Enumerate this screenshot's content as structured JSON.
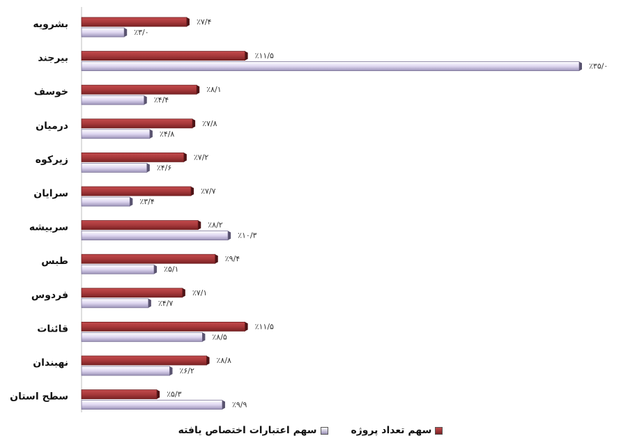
{
  "chart_data": {
    "type": "bar",
    "orientation": "horizontal",
    "categories": [
      "بشرویه",
      "بیرجند",
      "خوسف",
      "درمیان",
      "زیرکوه",
      "سرایان",
      "سربیشه",
      "طبس",
      "فردوس",
      "قائنات",
      "نهبندان",
      "سطح استان"
    ],
    "series": [
      {
        "name": "سهم تعداد پروژه",
        "color": "#a8393b",
        "values": [
          7.4,
          11.5,
          8.1,
          7.8,
          7.2,
          7.7,
          8.2,
          9.4,
          7.1,
          11.5,
          8.8,
          5.3
        ],
        "labels": [
          "٪۷/۴",
          "٪۱۱/۵",
          "٪۸/۱",
          "٪۷/۸",
          "٪۷/۲",
          "٪۷/۷",
          "٪۸/۲",
          "٪۹/۴",
          "٪۷/۱",
          "٪۱۱/۵",
          "٪۸/۸",
          "٪۵/۳"
        ]
      },
      {
        "name": "سهم اعتبارات اختصاص یافته",
        "color": "#c8bfe0",
        "values": [
          3.0,
          35.0,
          4.4,
          4.8,
          4.6,
          3.4,
          10.3,
          5.1,
          4.7,
          8.5,
          6.2,
          9.9
        ],
        "labels": [
          "٪۳/۰",
          "٪۳۵/۰",
          "٪۴/۴",
          "٪۴/۸",
          "٪۴/۶",
          "٪۳/۴",
          "٪۱۰/۳",
          "٪۵/۱",
          "٪۴/۷",
          "٪۸/۵",
          "٪۶/۲",
          "٪۹/۹"
        ]
      }
    ],
    "xlim": [
      0,
      35
    ],
    "grid": false,
    "legend_position": "bottom"
  },
  "legend": {
    "items": [
      {
        "label": "سهم اعتبارات اختصاص یافته",
        "color": "#c8bfe0"
      },
      {
        "label": "سهم تعداد پروژه",
        "color": "#a8393b"
      }
    ]
  }
}
